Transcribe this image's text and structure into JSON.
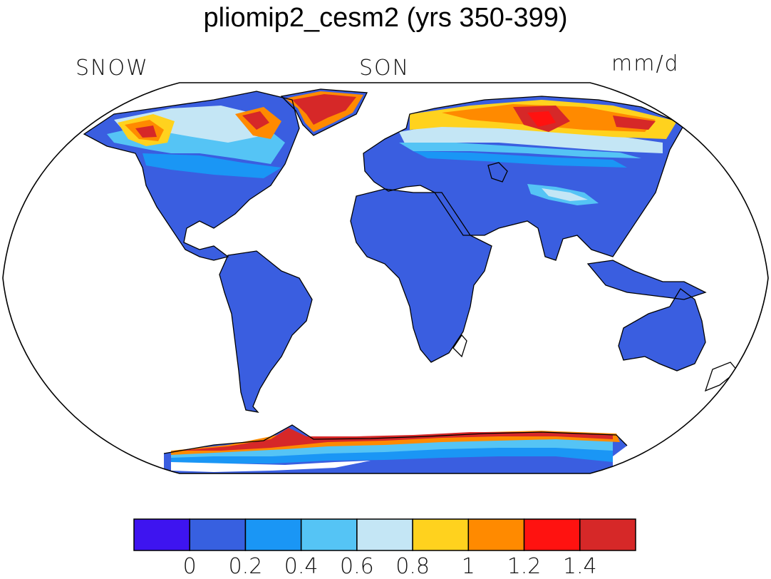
{
  "title": "pliomip2_cesm2 (yrs 350-399)",
  "variable": "SNOW",
  "season": "SON",
  "units": "mm/d",
  "colorbar": {
    "colors": [
      "#3e14f0",
      "#3760e0",
      "#1a96f5",
      "#55c4f5",
      "#c4e6f5",
      "#ffd21e",
      "#ff8a00",
      "#ff1210",
      "#d62828"
    ],
    "tick_labels": [
      "0",
      "0.2",
      "0.4",
      "0.6",
      "0.8",
      "1",
      "1.2",
      "1.4"
    ]
  },
  "map": {
    "projection": "Robinson",
    "land_base_color": "#3a5ee0",
    "ocean_color": "#ffffff"
  }
}
